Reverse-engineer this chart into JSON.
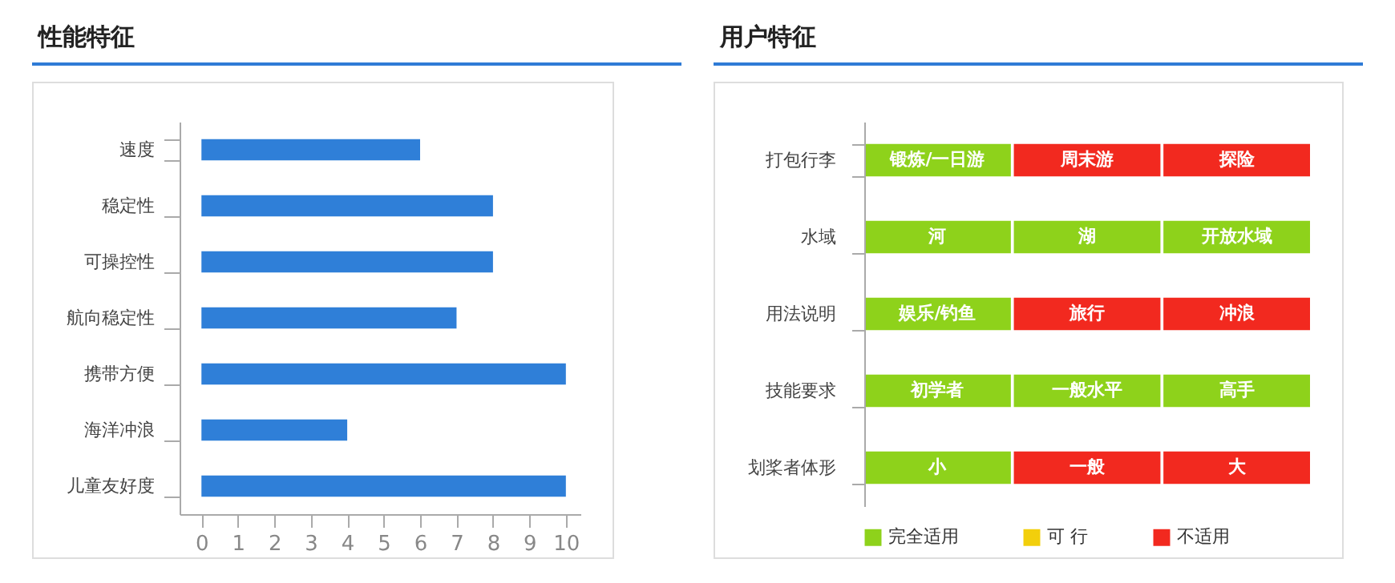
{
  "chart_data": [
    {
      "type": "bar",
      "title": "性能特征",
      "orientation": "horizontal",
      "categories": [
        "速度",
        "稳定性",
        "可操控性",
        "航向稳定性",
        "携带方便",
        "海洋冲浪",
        "儿童友好度"
      ],
      "values": [
        6,
        8,
        8,
        7,
        10,
        4,
        10
      ],
      "color": "#2f7fd8",
      "xlim": [
        -0.6,
        10.4
      ],
      "xticks": [
        0,
        1,
        2,
        3,
        4,
        5,
        6,
        7,
        8,
        9,
        10
      ],
      "grid": false
    },
    {
      "type": "other",
      "title": "用户特征",
      "y_categories": [
        "打包行李",
        "水域",
        "用法说明",
        "技能要求",
        "划桨者体形"
      ],
      "cell_labels": [
        [
          "锻炼/一日游",
          "周末游",
          "探险"
        ],
        [
          "河",
          "湖",
          "开放水域"
        ],
        [
          "娱乐/钓鱼",
          "旅行",
          "冲浪"
        ],
        [
          "初学者",
          "一般水平",
          "高手"
        ],
        [
          "小",
          "一般",
          "大"
        ]
      ],
      "colors": [
        [
          "#8ed21b",
          "#f2291f",
          "#f2291f"
        ],
        [
          "#8ed21b",
          "#8ed21b",
          "#8ed21b"
        ],
        [
          "#8ed21b",
          "#f2291f",
          "#f2291f"
        ],
        [
          "#8ed21b",
          "#8ed21b",
          "#8ed21b"
        ],
        [
          "#8ed21b",
          "#f2291f",
          "#f2291f"
        ]
      ],
      "series": [
        {
          "name": "完全适用",
          "color": "#8ed21b"
        },
        {
          "name": "可 行",
          "color": "#f2cf0c"
        },
        {
          "name": "不适用",
          "color": "#f2291f"
        }
      ],
      "legend": "bottom"
    }
  ]
}
